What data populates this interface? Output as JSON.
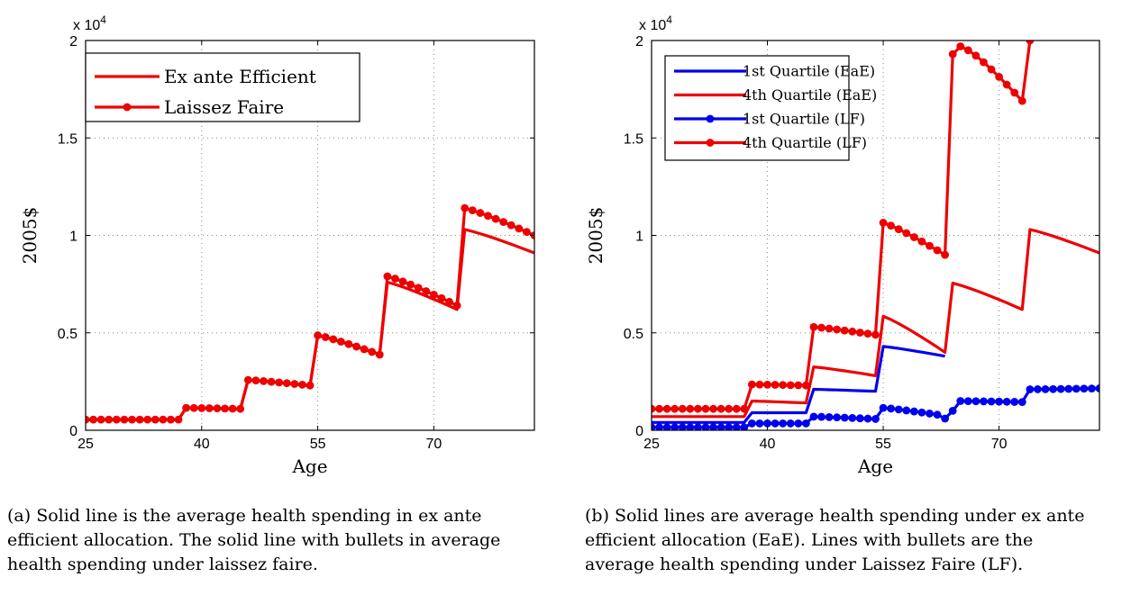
{
  "chart_data": [
    {
      "type": "line",
      "panel": "a",
      "xlabel": "Age",
      "ylabel": "2005$",
      "y_multiplier": "x 10",
      "y_multiplier_exp": "4",
      "xlim": [
        25,
        83
      ],
      "ylim": [
        0,
        2
      ],
      "xticks": [
        25,
        40,
        55,
        70
      ],
      "xtick_labels": [
        "25",
        "40",
        "55",
        "70"
      ],
      "yticks": [
        0,
        0.5,
        1,
        1.5,
        2
      ],
      "ytick_labels": [
        "0",
        "0.5",
        "1",
        "1.5",
        "2"
      ],
      "grid": true,
      "legend_position": "top-left",
      "caption": "(a) Solid line is the average health spending in ex ante efficient allocation. The solid line with bullets in average health spending under laissez faire.",
      "series": [
        {
          "name": "Ex ante Efficient",
          "color": "#ee0000",
          "marker": false,
          "segments": [
            {
              "x0": 25,
              "x1": 37,
              "start": 0.055,
              "end": 0.055
            },
            {
              "x0": 38,
              "x1": 45,
              "start": 0.115,
              "end": 0.108
            },
            {
              "x0": 46,
              "x1": 54,
              "start": 0.258,
              "end": 0.228
            },
            {
              "x0": 55,
              "x1": 63,
              "start": 0.485,
              "end": 0.39
            },
            {
              "x0": 64,
              "x1": 73,
              "start": 0.76,
              "end": 0.62
            },
            {
              "x0": 74,
              "x1": 83,
              "start": 1.03,
              "end": 0.91
            }
          ]
        },
        {
          "name": "Laissez Faire",
          "color": "#ee0000",
          "marker": true,
          "segments": [
            {
              "x0": 25,
              "x1": 37,
              "start": 0.055,
              "end": 0.055
            },
            {
              "x0": 38,
              "x1": 45,
              "start": 0.115,
              "end": 0.11
            },
            {
              "x0": 46,
              "x1": 54,
              "start": 0.258,
              "end": 0.23
            },
            {
              "x0": 55,
              "x1": 63,
              "start": 0.487,
              "end": 0.388
            },
            {
              "x0": 64,
              "x1": 73,
              "start": 0.79,
              "end": 0.64
            },
            {
              "x0": 74,
              "x1": 83,
              "start": 1.14,
              "end": 1.0
            }
          ]
        }
      ]
    },
    {
      "type": "line",
      "panel": "b",
      "xlabel": "Age",
      "ylabel": "2005$",
      "y_multiplier": "x 10",
      "y_multiplier_exp": "4",
      "xlim": [
        25,
        83
      ],
      "ylim": [
        0,
        2
      ],
      "xticks": [
        25,
        40,
        55,
        70
      ],
      "xtick_labels": [
        "25",
        "40",
        "55",
        "70"
      ],
      "yticks": [
        0,
        0.5,
        1,
        1.5,
        2
      ],
      "ytick_labels": [
        "0",
        "0.5",
        "1",
        "1.5",
        "2"
      ],
      "grid": true,
      "legend_position": "top-left",
      "caption": "(b) Solid lines are average health spending under ex ante efficient allocation (EaE). Lines with bullets are the average health spending under Laissez Faire (LF).",
      "series": [
        {
          "name": "1st Quartile (EaE)",
          "color": "#0000ee",
          "marker": false,
          "segments": [
            {
              "x0": 25,
              "x1": 37,
              "start": 0.04,
              "end": 0.04
            },
            {
              "x0": 38,
              "x1": 45,
              "start": 0.09,
              "end": 0.09
            },
            {
              "x0": 46,
              "x1": 54,
              "start": 0.21,
              "end": 0.2
            },
            {
              "x0": 55,
              "x1": 63,
              "start": 0.43,
              "end": 0.38
            }
          ]
        },
        {
          "name": "4th Quartile (EaE)",
          "color": "#ee0000",
          "marker": false,
          "segments": [
            {
              "x0": 25,
              "x1": 37,
              "start": 0.07,
              "end": 0.07
            },
            {
              "x0": 38,
              "x1": 45,
              "start": 0.15,
              "end": 0.14
            },
            {
              "x0": 46,
              "x1": 54,
              "start": 0.325,
              "end": 0.28
            },
            {
              "x0": 55,
              "x1": 63,
              "start": 0.585,
              "end": 0.4
            },
            {
              "x0": 64,
              "x1": 73,
              "start": 0.755,
              "end": 0.62
            },
            {
              "x0": 74,
              "x1": 83,
              "start": 1.03,
              "end": 0.91
            }
          ]
        },
        {
          "name": "1st Quartile (LF)",
          "color": "#0000ee",
          "marker": true,
          "segments": [
            {
              "x0": 25,
              "x1": 37,
              "start": 0.015,
              "end": 0.015
            },
            {
              "x0": 38,
              "x1": 45,
              "start": 0.035,
              "end": 0.035
            },
            {
              "x0": 46,
              "x1": 54,
              "start": 0.07,
              "end": 0.058
            },
            {
              "x0": 55,
              "x1": 62,
              "start": 0.115,
              "end": 0.08
            },
            {
              "x0": 63,
              "x1": 64,
              "start": 0.06,
              "end": 0.1
            },
            {
              "x0": 65,
              "x1": 73,
              "start": 0.15,
              "end": 0.145
            },
            {
              "x0": 74,
              "x1": 83,
              "start": 0.21,
              "end": 0.215
            }
          ]
        },
        {
          "name": "4th Quartile (LF)",
          "color": "#ee0000",
          "marker": true,
          "segments": [
            {
              "x0": 25,
              "x1": 37,
              "start": 0.11,
              "end": 0.11
            },
            {
              "x0": 38,
              "x1": 45,
              "start": 0.235,
              "end": 0.23
            },
            {
              "x0": 46,
              "x1": 54,
              "start": 0.53,
              "end": 0.49
            },
            {
              "x0": 55,
              "x1": 63,
              "start": 1.065,
              "end": 0.9
            },
            {
              "x0": 64,
              "x1": 65,
              "start": 1.93,
              "end": 1.97
            },
            {
              "x0": 66,
              "x1": 73,
              "start": 1.95,
              "end": 1.69
            },
            {
              "x0": 74,
              "x1": 74,
              "start": 2.0,
              "end": 2.0
            }
          ]
        }
      ]
    }
  ]
}
